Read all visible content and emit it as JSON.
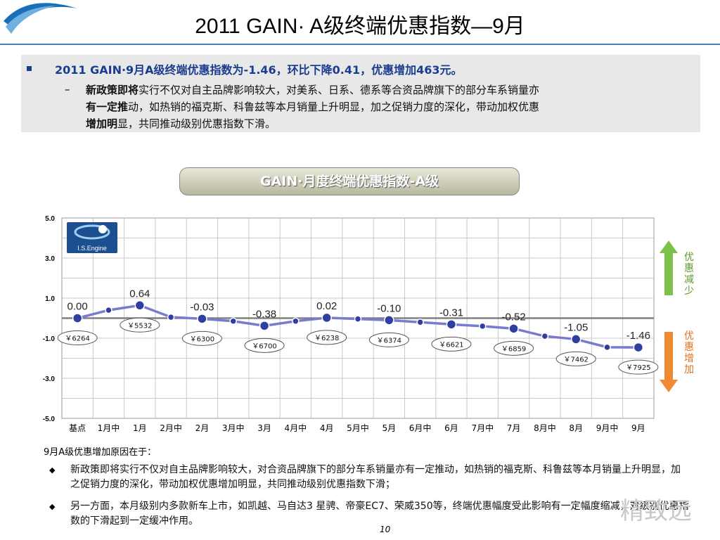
{
  "slide": {
    "title": "2011 GAIN· A级终端优惠指数—9月",
    "summary_headline": "2011 GAIN·9月A级终端优惠指数为-1.46，环比下降0.41，优惠增加463元。",
    "summary_dash": "–",
    "summary_b1": "新政策即将",
    "summary_t1": "实行不仅对自主品牌影响较大，对美系、日系、德系等合资品牌旗下的部分车系销量亦",
    "summary_b2": "有一定推",
    "summary_t2": "动，如热销的福克斯、科鲁兹等本月销量上升明显，加之促销力度的深化，带动加权优惠",
    "summary_b3": "增加明",
    "summary_t3": "显，共同推动级别优惠指数下滑。",
    "chart_title": "GAIN·月度终端优惠指数-A级",
    "reason_title": "9月A级优惠增加原因在于：",
    "reason_1": "新政策即将实行不仅对自主品牌影响较大，对合资品牌旗下的部分车系销量亦有一定推动，如热销的福克斯、科鲁兹等本月销量上升明显，加之促销力度的深化，带动加权优惠增加明显，共同推动级别优惠指数下滑；",
    "reason_2": "另一方面，本月级别内多款新车上市，如凯越、马自达3 星骋、帝豪EC7、荣威350等，终端优惠幅度受此影响有一定幅度缩减，对级别优惠指数的下滑起到一定缓冲作用。",
    "reason_marker": "◆",
    "page_number": "10",
    "brand_text": "精致远",
    "logo_text": "I.S.Engine",
    "arrow_up_label": "优惠减少",
    "arrow_down_label": "优惠增加"
  },
  "colors": {
    "line": "#7a7ad0",
    "marker": "#2e3fa0",
    "zero_line": "#808080",
    "arrow_up": "#7cc24a",
    "arrow_down": "#f08a30",
    "title_accent": "#1a3d8f"
  },
  "chart_data": {
    "type": "line",
    "title": "GAIN·月度终端优惠指数-A级",
    "ylim": [
      -5.0,
      5.0
    ],
    "yticks": [
      "5.0",
      "3.0",
      "1.0",
      "-1.0",
      "-3.0",
      "-5.0"
    ],
    "ytick_values": [
      5,
      3,
      1,
      -1,
      -3,
      -5
    ],
    "categories": [
      "基点",
      "1月中",
      "1月",
      "2月中",
      "2月",
      "3月中",
      "3月",
      "4月中",
      "4月",
      "5月中",
      "5月",
      "6月中",
      "6月",
      "7月中",
      "7月",
      "8月中",
      "8月",
      "9月中",
      "9月"
    ],
    "series": [
      {
        "name": "",
        "values": [
          0.0,
          0.4,
          0.64,
          0.05,
          -0.03,
          -0.15,
          -0.38,
          -0.15,
          0.02,
          -0.04,
          -0.1,
          -0.2,
          -0.31,
          -0.4,
          -0.52,
          -0.9,
          -1.05,
          -1.45,
          -1.46
        ]
      }
    ],
    "data_labels": [
      {
        "index": 0,
        "text": "0.00"
      },
      {
        "index": 2,
        "text": "0.64"
      },
      {
        "index": 4,
        "text": "-0.03"
      },
      {
        "index": 6,
        "text": "-0.38"
      },
      {
        "index": 8,
        "text": "0.02"
      },
      {
        "index": 10,
        "text": "-0.10"
      },
      {
        "index": 12,
        "text": "-0.31"
      },
      {
        "index": 14,
        "text": "-0.52"
      },
      {
        "index": 16,
        "text": "-1.05"
      },
      {
        "index": 18,
        "text": "-1.46"
      }
    ],
    "price_labels": [
      {
        "index": 0,
        "text": "￥6264"
      },
      {
        "index": 2,
        "text": "￥5532"
      },
      {
        "index": 4,
        "text": "￥6300"
      },
      {
        "index": 6,
        "text": "￥6700"
      },
      {
        "index": 8,
        "text": "￥6238"
      },
      {
        "index": 10,
        "text": "￥6374"
      },
      {
        "index": 12,
        "text": "￥6621"
      },
      {
        "index": 14,
        "text": "￥6859"
      },
      {
        "index": 16,
        "text": "￥7462"
      },
      {
        "index": 18,
        "text": "￥7925"
      }
    ],
    "grid": true,
    "legend": "none"
  }
}
